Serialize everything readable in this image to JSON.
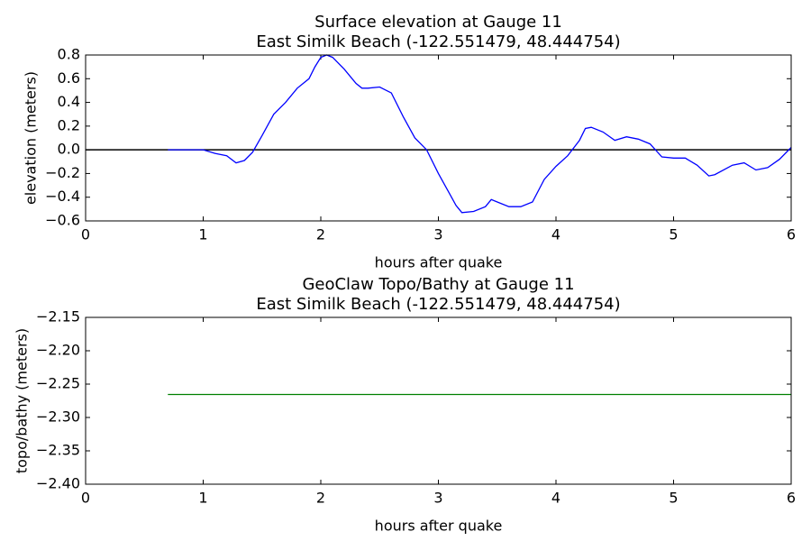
{
  "chart_data": [
    {
      "type": "line",
      "title": [
        "Surface elevation at Gauge 11",
        "East Similk Beach  (-122.551479, 48.444754)"
      ],
      "x_label": "hours after quake",
      "y_label": "elevation (meters)",
      "xlim": [
        0,
        6
      ],
      "ylim": [
        -0.6,
        0.8
      ],
      "xticks": [
        0,
        1,
        2,
        3,
        4,
        5,
        6
      ],
      "yticks": [
        {
          "value": -0.6,
          "label": "−0.6"
        },
        {
          "value": -0.4,
          "label": "−0.4"
        },
        {
          "value": -0.2,
          "label": "−0.2"
        },
        {
          "value": 0,
          "label": "0.0"
        },
        {
          "value": 0.2,
          "label": "0.2"
        },
        {
          "value": 0.4,
          "label": "0.4"
        },
        {
          "value": 0.6,
          "label": "0.6"
        },
        0.8
      ],
      "hline": {
        "value": 0,
        "color": "#000000"
      },
      "series": [
        {
          "color": "#0000ff",
          "x": [
            0.7,
            0.8,
            0.9,
            1.0,
            1.1,
            1.2,
            1.28,
            1.35,
            1.42,
            1.5,
            1.6,
            1.7,
            1.8,
            1.9,
            1.95,
            2.0,
            2.05,
            2.1,
            2.2,
            2.3,
            2.35,
            2.4,
            2.5,
            2.6,
            2.7,
            2.8,
            2.9,
            3.0,
            3.1,
            3.15,
            3.2,
            3.3,
            3.4,
            3.45,
            3.5,
            3.6,
            3.7,
            3.8,
            3.9,
            4.0,
            4.1,
            4.2,
            4.25,
            4.3,
            4.4,
            4.5,
            4.6,
            4.7,
            4.8,
            4.9,
            5.0,
            5.1,
            5.2,
            5.3,
            5.35,
            5.5,
            5.6,
            5.7,
            5.8,
            5.9,
            6.0
          ],
          "values": [
            0.0,
            0.0,
            0.0,
            0.0,
            -0.03,
            -0.05,
            -0.11,
            -0.09,
            -0.02,
            0.12,
            0.3,
            0.4,
            0.52,
            0.6,
            0.7,
            0.78,
            0.8,
            0.78,
            0.68,
            0.56,
            0.52,
            0.52,
            0.53,
            0.48,
            0.28,
            0.1,
            0.0,
            -0.2,
            -0.38,
            -0.47,
            -0.53,
            -0.52,
            -0.48,
            -0.42,
            -0.44,
            -0.48,
            -0.48,
            -0.44,
            -0.25,
            -0.14,
            -0.05,
            0.08,
            0.18,
            0.19,
            0.15,
            0.08,
            0.11,
            0.09,
            0.05,
            -0.06,
            -0.07,
            -0.07,
            -0.13,
            -0.22,
            -0.21,
            -0.13,
            -0.11,
            -0.17,
            -0.15,
            -0.08,
            0.02
          ]
        }
      ]
    },
    {
      "type": "line",
      "title": [
        "GeoClaw Topo/Bathy at Gauge 11",
        "East Similk Beach  (-122.551479, 48.444754)"
      ],
      "x_label": "hours after quake",
      "y_label": "topo/bathy (meters)",
      "xlim": [
        0,
        6
      ],
      "ylim": [
        -2.4,
        -2.15
      ],
      "xticks": [
        0,
        1,
        2,
        3,
        4,
        5,
        6
      ],
      "yticks": [
        {
          "value": -2.4,
          "label": "−2.40"
        },
        {
          "value": -2.35,
          "label": "−2.35"
        },
        {
          "value": -2.3,
          "label": "−2.30"
        },
        {
          "value": -2.25,
          "label": "−2.25"
        },
        {
          "value": -2.2,
          "label": "−2.20"
        },
        {
          "value": -2.15,
          "label": "−2.15"
        }
      ],
      "series": [
        {
          "color": "#008000",
          "x": [
            0.7,
            6.0
          ],
          "values": [
            -2.2655,
            -2.2655
          ]
        }
      ]
    }
  ]
}
